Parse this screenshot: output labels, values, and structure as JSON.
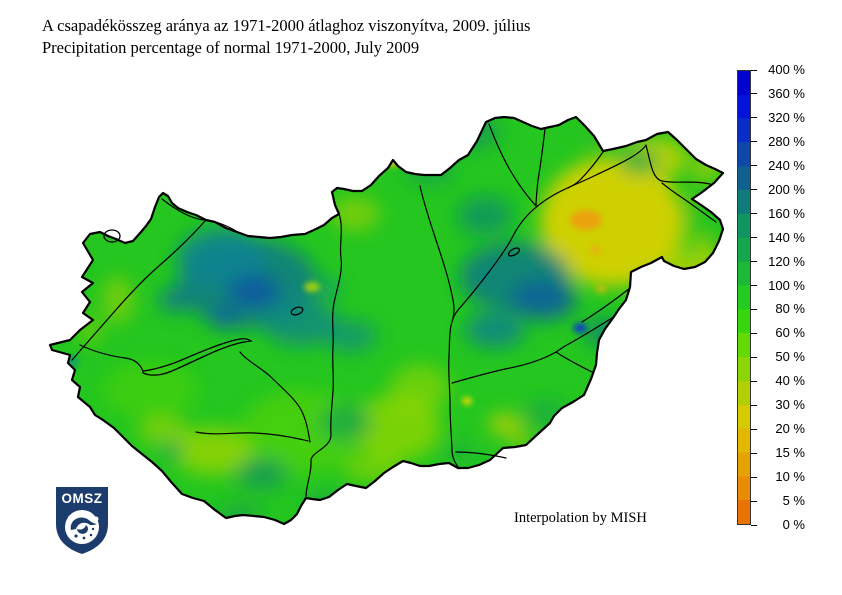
{
  "title": {
    "line1": "A csapadékösszeg aránya az 1971-2000 átlaghoz viszonyítva, 2009. július",
    "line2": "Precipitation percentage of normal 1971-2000, July 2009"
  },
  "map": {
    "region": "Hungary",
    "credit": "Interpolation by MISH"
  },
  "logo": {
    "text": "OMSZ",
    "color": "#1d3c6e"
  },
  "legend": {
    "unit": "%",
    "labels": [
      "400 %",
      "360 %",
      "320 %",
      "280 %",
      "240 %",
      "200 %",
      "160 %",
      "140 %",
      "120 %",
      "100 %",
      "80 %",
      "60 %",
      "50 %",
      "40 %",
      "30 %",
      "20 %",
      "15 %",
      "10 %",
      "5 %",
      "0 %"
    ],
    "band_colors_top_to_bottom": [
      "#0202cf",
      "#0214dc",
      "#0a2ec5",
      "#0e49a9",
      "#0f618f",
      "#107c79",
      "#119560",
      "#15a74b",
      "#1bb936",
      "#22cc20",
      "#38d60d",
      "#63da06",
      "#8bd505",
      "#b2cf03",
      "#d6ca02",
      "#e2b803",
      "#e6a204",
      "#e88c05",
      "#ea7306"
    ]
  },
  "chart_data": {
    "type": "heatmap",
    "title": "Precipitation percentage of normal 1971-2000, July 2009",
    "region": "Hungary",
    "legend_values_pct": [
      400,
      360,
      320,
      280,
      240,
      200,
      160,
      140,
      120,
      100,
      80,
      60,
      50,
      40,
      30,
      20,
      15,
      10,
      5,
      0
    ],
    "legend_band_colors": [
      "#0202cf",
      "#0214dc",
      "#0a2ec5",
      "#0e49a9",
      "#0f618f",
      "#107c79",
      "#119560",
      "#15a74b",
      "#1bb936",
      "#22cc20",
      "#38d60d",
      "#63da06",
      "#8bd505",
      "#b2cf03",
      "#d6ca02",
      "#e2b803",
      "#e6a204",
      "#e88c05",
      "#ea7306"
    ],
    "legend_position": "right",
    "readings_by_region_pct": {
      "northwest_kisalfold": "160-280 (dark blue-green maximum)",
      "north_mountains": "120-160",
      "central_tisza_band": "140-240 with small spots near 280",
      "northeast_nyirseg": "20-40 (yellow, local orange minimum near 20)",
      "southwest_transdanubia": "50-80 (yellow-green)",
      "south_between_danube_tisza": "40-80",
      "overall_base": "80-140"
    }
  }
}
